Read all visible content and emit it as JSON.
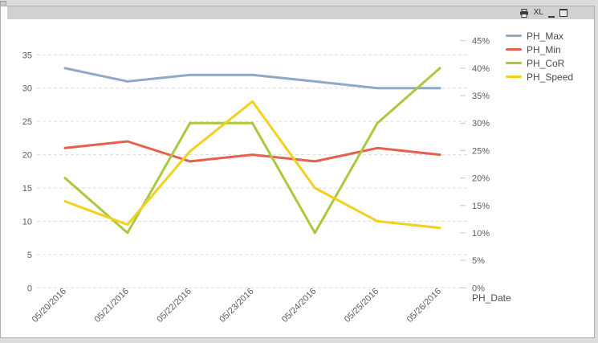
{
  "caption": {
    "print_icon": "print",
    "excel_label": "XL",
    "minimize_icon": "minimize",
    "maximize_icon": "maximize"
  },
  "chart_data": {
    "type": "line",
    "x": [
      "05/20/2016",
      "05/21/2016",
      "05/22/2016",
      "05/23/2016",
      "05/24/2016",
      "05/25/2016",
      "05/26/2016"
    ],
    "xlabel": "PH_Date",
    "series": [
      {
        "name": "PH_Max",
        "axis": "left",
        "color": "#8FA9C9",
        "values": [
          33,
          31,
          32,
          32,
          31,
          30,
          30
        ]
      },
      {
        "name": "PH_Min",
        "axis": "left",
        "color": "#E7604F",
        "values": [
          21,
          22,
          19,
          20,
          19,
          21,
          20
        ]
      },
      {
        "name": "PH_CoR",
        "axis": "right",
        "color": "#AAC93E",
        "values": [
          20,
          10,
          30,
          30,
          10,
          30,
          40
        ]
      },
      {
        "name": "PH_Speed",
        "axis": "left",
        "color": "#F4D01F",
        "values": [
          13,
          9.5,
          20.5,
          28,
          15,
          10,
          9
        ]
      }
    ],
    "left_axis": {
      "min": 0,
      "max": 35,
      "step": 5,
      "ticks": [
        "0",
        "5",
        "10",
        "15",
        "20",
        "25",
        "30",
        "35"
      ]
    },
    "right_axis": {
      "min": 0,
      "max": 45,
      "step": 5,
      "suffix": "%",
      "ticks": [
        "0%",
        "5%",
        "10%",
        "15%",
        "20%",
        "25%",
        "30%",
        "35%",
        "40%",
        "45%"
      ]
    },
    "grid": "horizontal-dashed",
    "legend_position": "top-right",
    "colors": {
      "grid": "#dcdcdc",
      "tick": "#c6c6c6",
      "axis_text": "#5d5d5d",
      "xlabel_text": "#4f4f4f"
    }
  }
}
